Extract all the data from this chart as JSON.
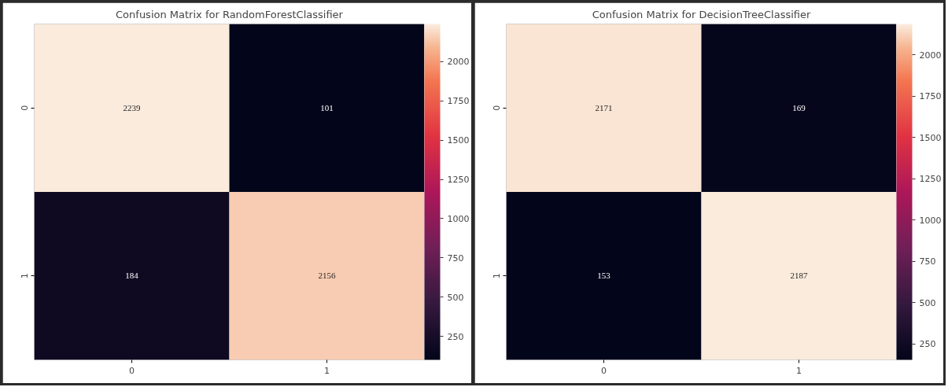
{
  "chart_data": [
    {
      "type": "heatmap",
      "title": "Confusion Matrix for RandomForestClassifier",
      "categories": [
        "0",
        "1"
      ],
      "y_categories": [
        "0",
        "1"
      ],
      "cells": [
        [
          2239,
          101
        ],
        [
          184,
          2156
        ]
      ],
      "data_labels": true,
      "clim": [
        101,
        2239
      ],
      "cticks": [
        250,
        500,
        750,
        1000,
        1250,
        1500,
        1750,
        2000
      ]
    },
    {
      "type": "heatmap",
      "title": "Confusion Matrix for DecisionTreeClassifier",
      "categories": [
        "0",
        "1"
      ],
      "y_categories": [
        "0",
        "1"
      ],
      "cells": [
        [
          2171,
          169
        ],
        [
          153,
          2187
        ]
      ],
      "data_labels": true,
      "clim": [
        153,
        2187
      ],
      "cticks": [
        250,
        500,
        750,
        1000,
        1250,
        1500,
        1750,
        2000
      ]
    }
  ]
}
